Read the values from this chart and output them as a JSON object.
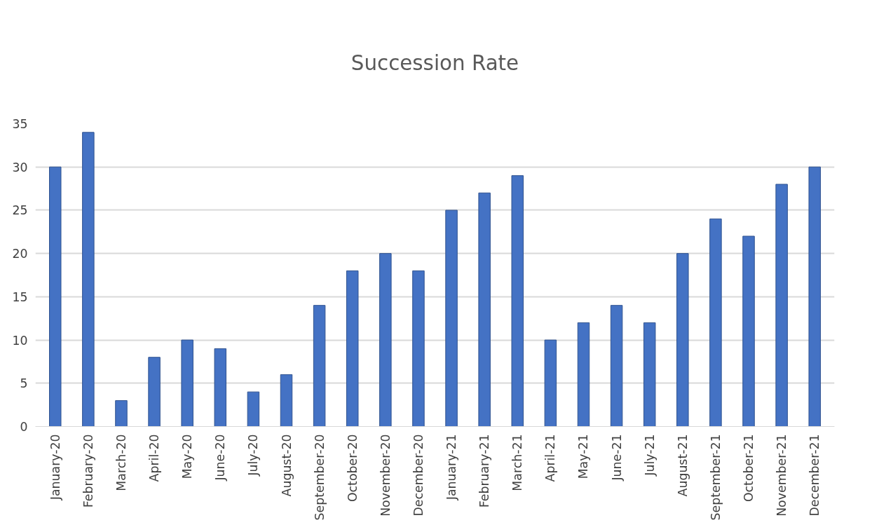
{
  "chart_data": {
    "type": "bar",
    "title": "Succession Rate",
    "categories": [
      "January-20",
      "February-20",
      "March-20",
      "April-20",
      "May-20",
      "June-20",
      "July-20",
      "August-20",
      "September-20",
      "October-20",
      "November-20",
      "December-20",
      "January-21",
      "February-21",
      "March-21",
      "April-21",
      "May-21",
      "June-21",
      "July-21",
      "August-21",
      "September-21",
      "October-21",
      "November-21",
      "December-21"
    ],
    "values": [
      30,
      34,
      3,
      8,
      10,
      9,
      4,
      6,
      14,
      18,
      20,
      18,
      25,
      27,
      29,
      10,
      12,
      14,
      12,
      20,
      24,
      22,
      28,
      30
    ],
    "color": "#4472c4",
    "ylim": [
      0,
      35
    ],
    "yticks": [
      0,
      5,
      10,
      15,
      20,
      25,
      30,
      35
    ],
    "grid": "y"
  }
}
